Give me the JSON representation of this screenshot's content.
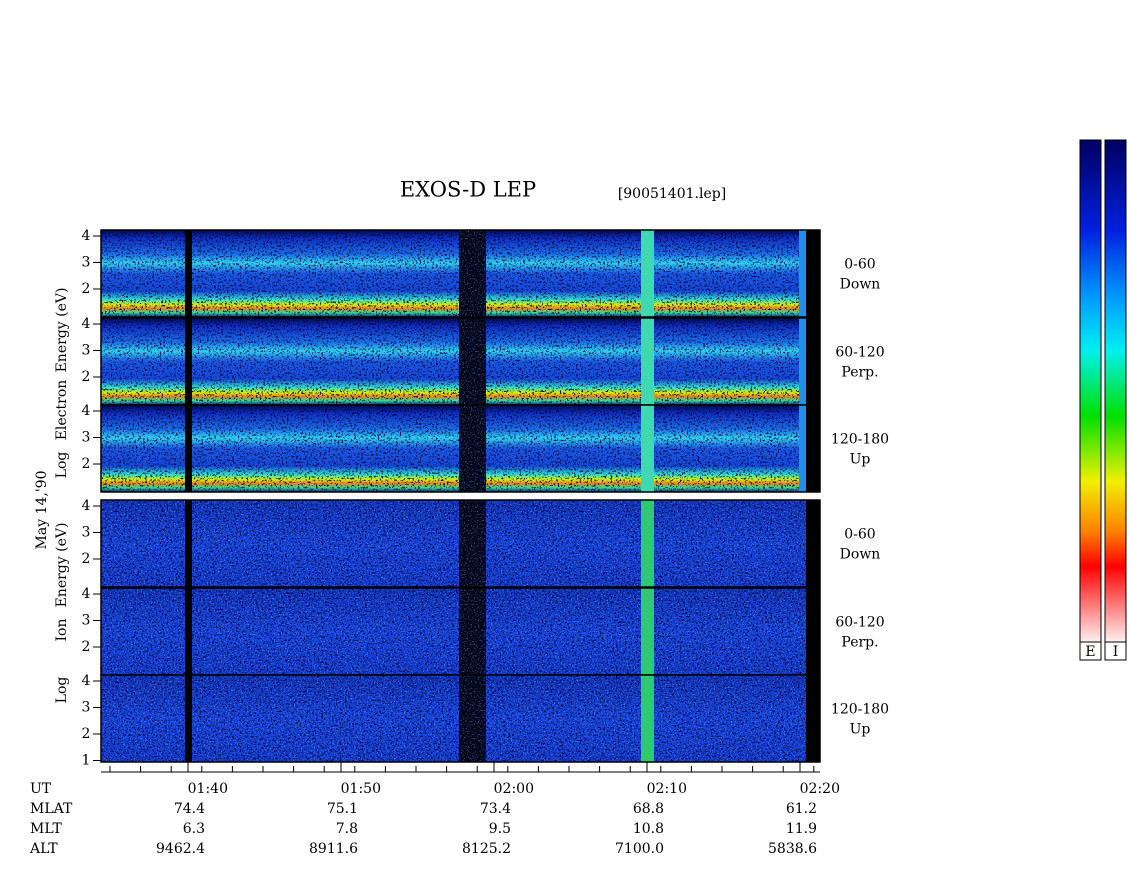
{
  "title": "EXOS-D LEP",
  "file": "[90051401.lep]",
  "date": "May 14,'90",
  "electron_axis": [
    "Log",
    "Electron",
    "Energy (eV)"
  ],
  "ion_axis": [
    "Log",
    "Ion",
    "Energy (eV)"
  ],
  "panels": [
    {
      "angle": "0-60",
      "direction": "Down",
      "yticks": [
        2,
        3,
        4
      ]
    },
    {
      "angle": "60-120",
      "direction": "Perp.",
      "yticks": [
        2,
        3,
        4
      ]
    },
    {
      "angle": "120-180",
      "direction": "Up",
      "yticks": [
        2,
        3,
        4
      ]
    },
    {
      "angle": "0-60",
      "direction": "Down",
      "yticks": [
        2,
        3,
        4
      ]
    },
    {
      "angle": "60-120",
      "direction": "Perp.",
      "yticks": [
        2,
        3,
        4
      ]
    },
    {
      "angle": "120-180",
      "direction": "Up",
      "yticks": [
        1,
        2,
        3,
        4
      ]
    }
  ],
  "orbit": {
    "labels": [
      "UT",
      "MLAT",
      "MLT",
      "ALT"
    ],
    "UT": [
      "01:40",
      "01:50",
      "02:00",
      "02:10",
      "02:20"
    ],
    "MLAT": [
      "74.4",
      "75.1",
      "73.4",
      "68.8",
      "61.2"
    ],
    "MLT": [
      "6.3",
      "7.8",
      "9.5",
      "10.8",
      "11.9"
    ],
    "ALT": [
      "9462.4",
      "8911.6",
      "8125.2",
      "7100.0",
      "5838.6"
    ]
  },
  "colorbars": [
    "E",
    "I"
  ]
}
